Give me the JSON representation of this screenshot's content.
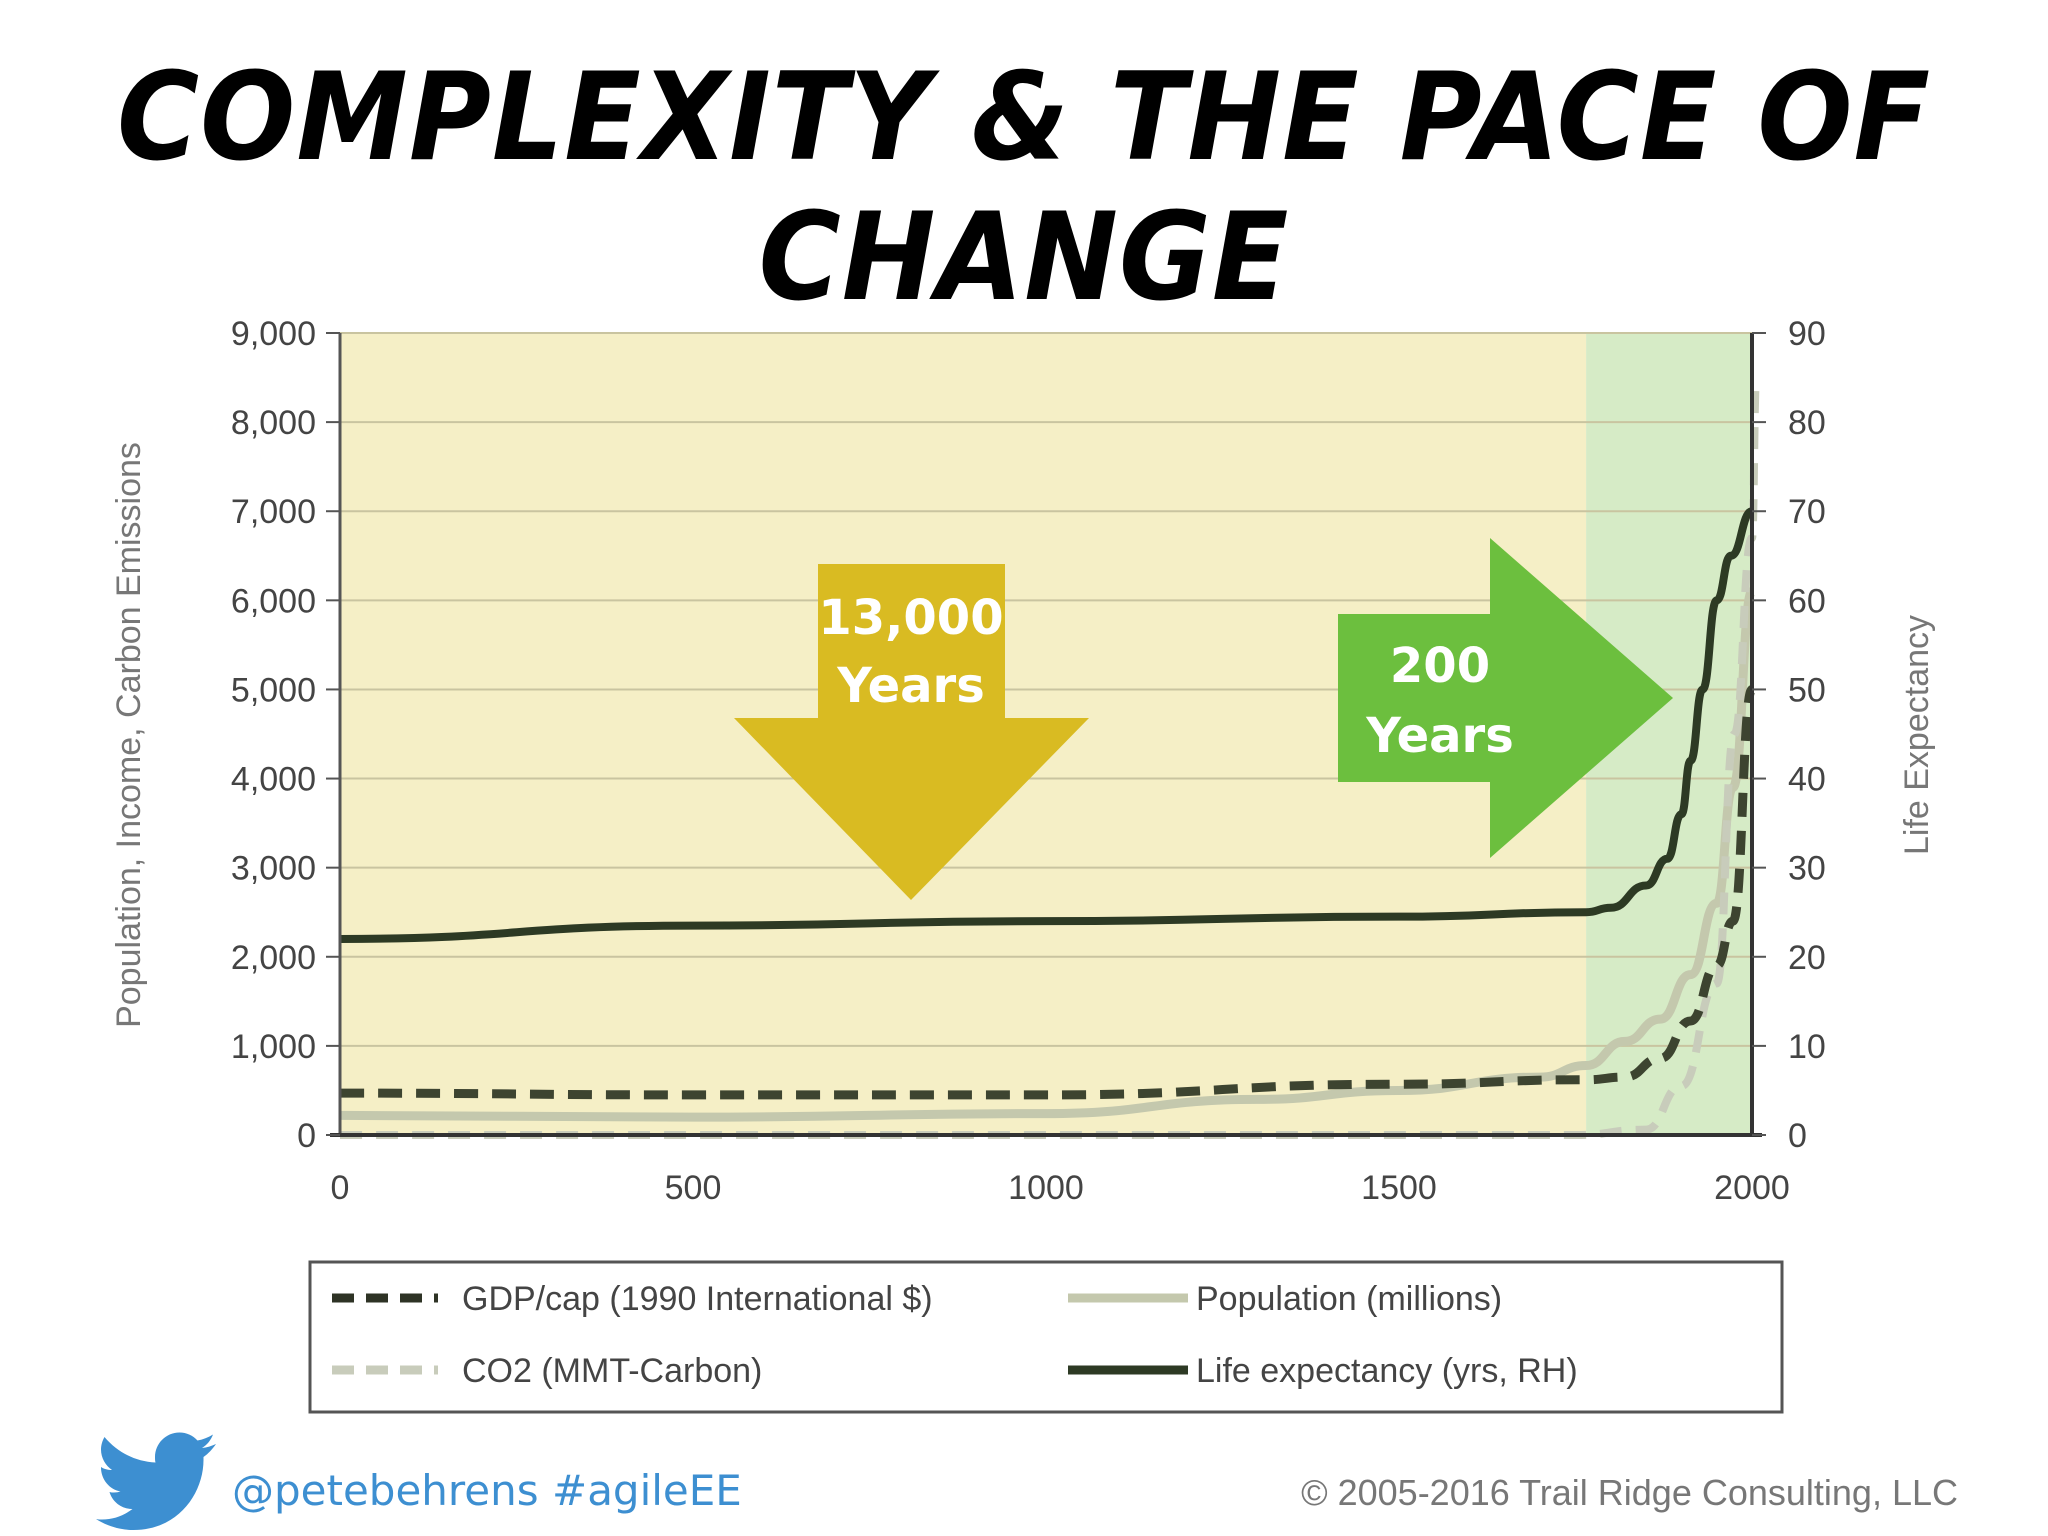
{
  "title": "COMPLEXITY & THE PACE OF CHANGE",
  "footer": {
    "handle": "@petebehrens",
    "hashtag": "#agileEE",
    "copyright": "© 2005-2016 Trail Ridge Consulting, LLC",
    "icon": "twitter-bird-icon"
  },
  "colors": {
    "era_bg_old": "#f5efc6",
    "era_bg_new": "#d6ebc6",
    "arrow_old": "#d9bb22",
    "arrow_new": "#6cbf3e",
    "life_line": "#2d3a24",
    "gdp_line": "#3d4430",
    "population_line": "#c4c8ad",
    "co2_line": "#c8ccbb",
    "twitter": "#3d8fd1"
  },
  "chart_data": {
    "type": "line",
    "xlim": [
      0,
      2000
    ],
    "x_ticks": [
      "0",
      "500",
      "1000",
      "1500",
      "2000"
    ],
    "y_left": {
      "label": "Population, Income, Carbon Emissions",
      "lim": [
        0,
        9000
      ],
      "ticks": [
        "0",
        "1,000",
        "2,000",
        "3,000",
        "4,000",
        "5,000",
        "6,000",
        "7,000",
        "8,000",
        "9,000"
      ]
    },
    "y_right": {
      "label": "Life Expectancy",
      "lim": [
        0,
        90
      ],
      "ticks": [
        "0",
        "10",
        "20",
        "30",
        "40",
        "50",
        "60",
        "70",
        "80",
        "90"
      ]
    },
    "grid": true,
    "regions": [
      {
        "x": [
          0,
          1765
        ],
        "color": "#f5efc6"
      },
      {
        "x": [
          1765,
          2000
        ],
        "color": "#d6ebc6"
      }
    ],
    "series": [
      {
        "name": "GDP/cap (1990 International $)",
        "axis": "left",
        "style": "dashed",
        "x": [
          0,
          500,
          1000,
          1500,
          1765,
          1820,
          1870,
          1913,
          1950,
          1973,
          2000
        ],
        "y": [
          470,
          450,
          450,
          570,
          620,
          650,
          860,
          1280,
          1900,
          2400,
          5000
        ]
      },
      {
        "name": "Population (millions)",
        "axis": "left",
        "style": "solid",
        "x": [
          0,
          500,
          1000,
          1300,
          1500,
          1700,
          1765,
          1820,
          1870,
          1913,
          1950,
          1973,
          2000
        ],
        "y": [
          220,
          200,
          240,
          400,
          500,
          650,
          780,
          1050,
          1300,
          1800,
          2600,
          3900,
          6100
        ]
      },
      {
        "name": "CO2 (MMT-Carbon)",
        "axis": "left",
        "style": "dashed",
        "x": [
          0,
          1750,
          1850,
          1900,
          1950,
          1975,
          2000,
          2006
        ],
        "y": [
          0,
          0,
          60,
          550,
          1700,
          4500,
          6700,
          8500
        ]
      },
      {
        "name": "Life expectancy (yrs, RH)",
        "axis": "right",
        "style": "solid",
        "x": [
          0,
          500,
          1000,
          1500,
          1765,
          1800,
          1850,
          1880,
          1900,
          1913,
          1930,
          1950,
          1970,
          2000
        ],
        "y": [
          22,
          23.5,
          24,
          24.5,
          25,
          25.5,
          28,
          31,
          36,
          42,
          50,
          60,
          65,
          70
        ]
      }
    ],
    "annotations": [
      {
        "text_lines": [
          "13,000",
          "Years"
        ],
        "shape": "down-arrow"
      },
      {
        "text_lines": [
          "200",
          "Years"
        ],
        "shape": "right-arrow"
      }
    ],
    "legend": "bottom"
  }
}
